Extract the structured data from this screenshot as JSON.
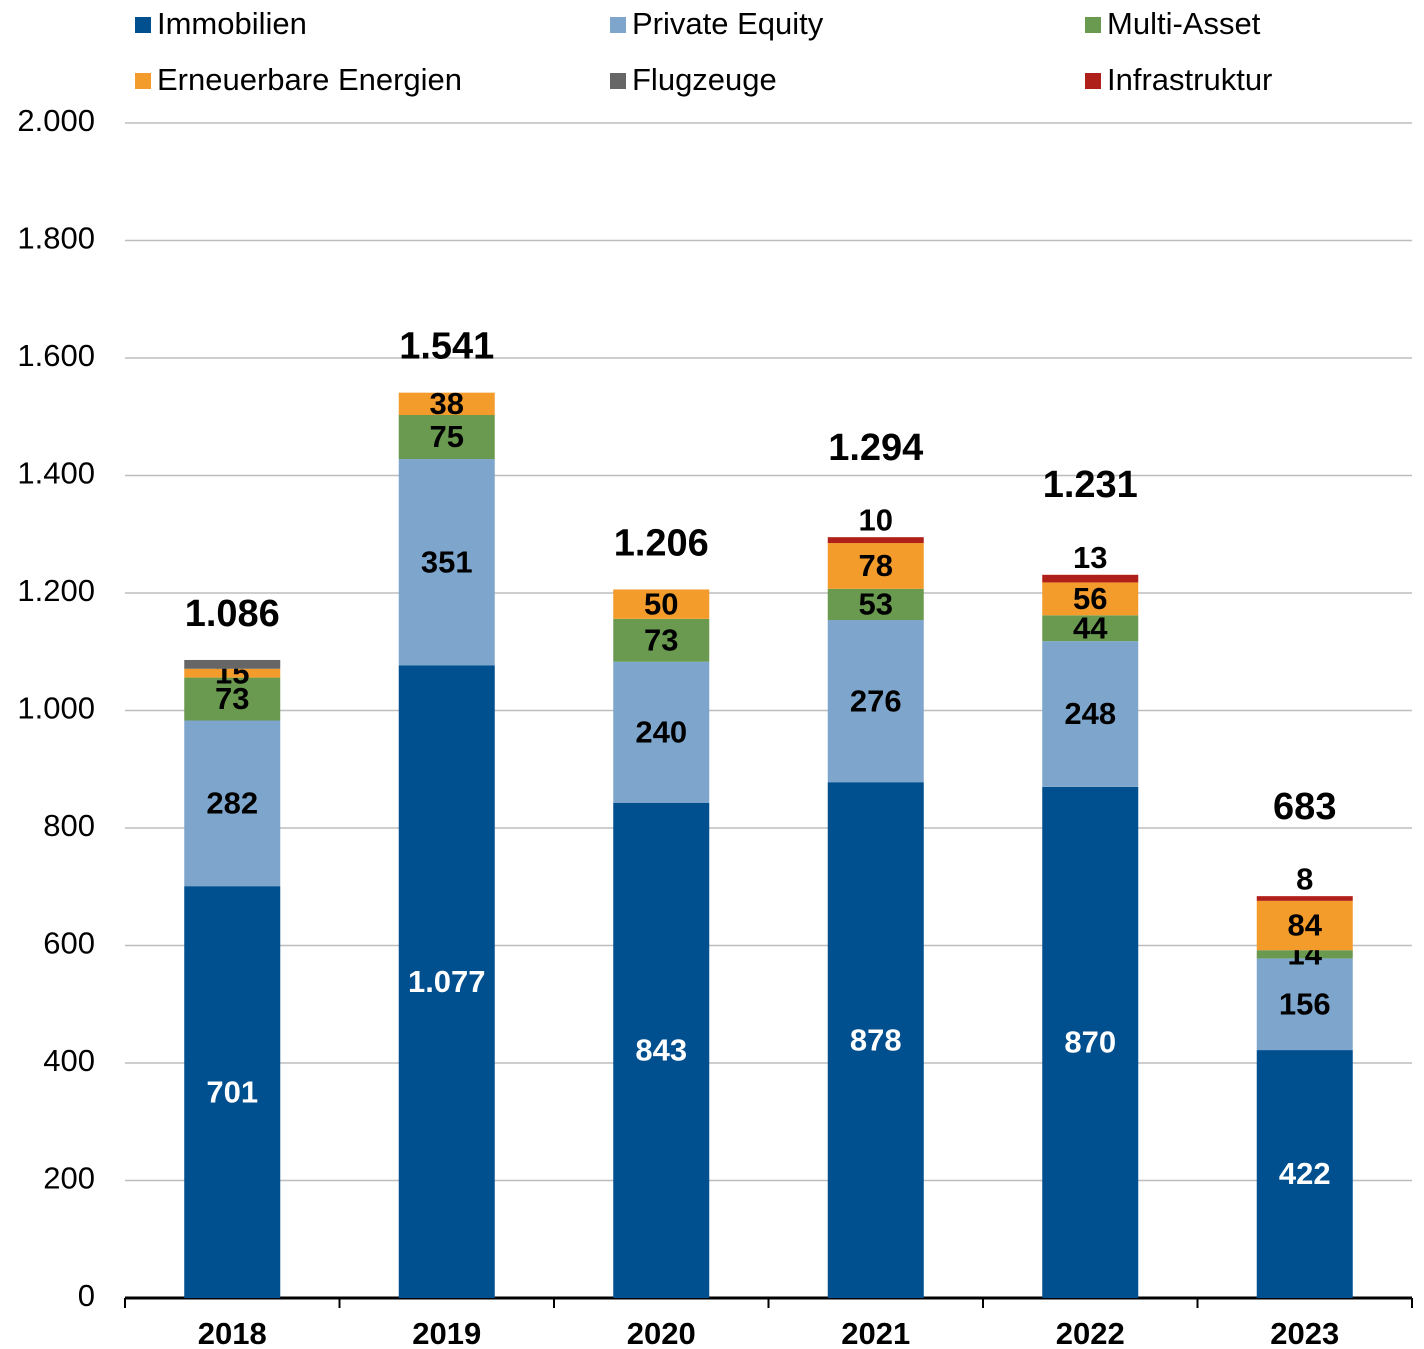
{
  "chart_data": {
    "type": "stacked_bar",
    "categories": [
      "2018",
      "2019",
      "2020",
      "2021",
      "2022",
      "2023"
    ],
    "series": [
      {
        "name": "Immobilien",
        "color": "#004f8f",
        "values": [
          701,
          1077,
          843,
          878,
          870,
          422
        ],
        "value_labels": [
          "701",
          "1.077",
          "843",
          "878",
          "870",
          "422"
        ]
      },
      {
        "name": "Private Equity",
        "color": "#7ea6cc",
        "values": [
          282,
          351,
          240,
          276,
          248,
          156
        ],
        "value_labels": [
          "282",
          "351",
          "240",
          "276",
          "248",
          "156"
        ]
      },
      {
        "name": "Multi-Asset",
        "color": "#6a9a4f",
        "values": [
          73,
          75,
          73,
          53,
          44,
          14
        ],
        "value_labels": [
          "73",
          "75",
          "73",
          "53",
          "44",
          "14"
        ]
      },
      {
        "name": "Erneuerbare Energien",
        "color": "#f39b2b",
        "values": [
          15,
          38,
          50,
          78,
          56,
          84
        ],
        "value_labels": [
          "15",
          "38",
          "50",
          "78",
          "56",
          "84"
        ]
      },
      {
        "name": "Flugzeuge",
        "color": "#666666",
        "values": [
          15,
          null,
          null,
          null,
          null,
          null
        ],
        "value_labels": [
          null,
          null,
          null,
          null,
          null,
          null
        ]
      },
      {
        "name": "Infrastruktur",
        "color": "#b0201a",
        "values": [
          null,
          null,
          null,
          10,
          13,
          8
        ],
        "value_labels": [
          null,
          null,
          null,
          "10",
          "13",
          "8"
        ]
      }
    ],
    "totals": {
      "values": [
        1086,
        1541,
        1206,
        1294,
        1231,
        683
      ],
      "value_labels": [
        "1.086",
        "1.541",
        "1.206",
        "1.294",
        "1.231",
        "683"
      ]
    },
    "ylim": [
      0,
      2000
    ],
    "yticks": [
      0,
      200,
      400,
      600,
      800,
      {
        "value": 1000,
        "label": "1.000"
      },
      {
        "value": 1200,
        "label": "1.200"
      },
      {
        "value": 1400,
        "label": "1.400"
      },
      {
        "value": 1600,
        "label": "1.600"
      },
      {
        "value": 1800,
        "label": "1.800"
      },
      {
        "value": 2000,
        "label": "2.000"
      }
    ],
    "grid": true,
    "legend": "top"
  }
}
